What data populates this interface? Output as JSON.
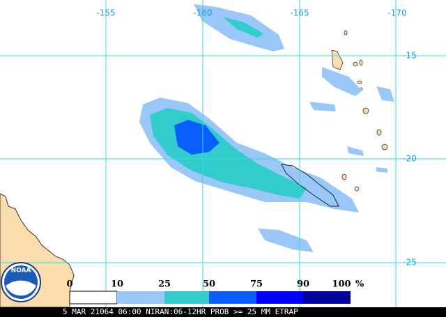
{
  "map": {
    "lon_labels": [
      "-155",
      "-160",
      "-165",
      "-170"
    ],
    "lat_labels": [
      "-15",
      "-20",
      "-25"
    ],
    "logo": "NOAA",
    "legend": {
      "labels": [
        "0",
        "10",
        "25",
        "50",
        "75",
        "90",
        "100"
      ],
      "unit": "%"
    },
    "caption": "5 MAR 21064 06:00 NIRAN:06-12HR PROB >= 25 MM ETRAP"
  }
}
